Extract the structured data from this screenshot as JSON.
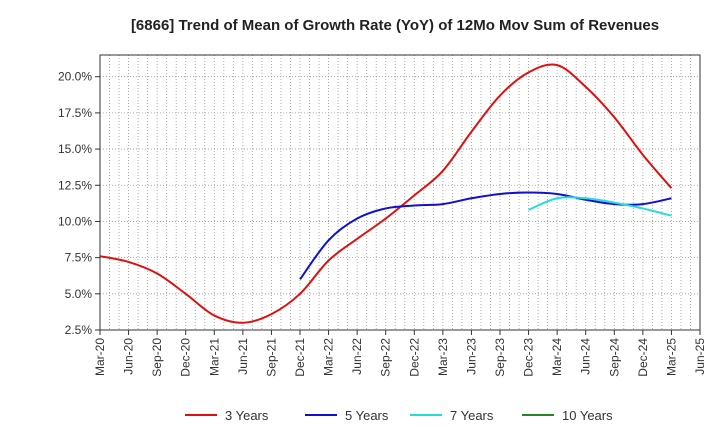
{
  "chart_data": {
    "type": "line",
    "title": "[6866]  Trend of Mean of Growth Rate (YoY) of 12Mo Mov Sum of Revenues",
    "xlabel": "",
    "ylabel": "",
    "ylim": [
      2.5,
      21.5
    ],
    "yticks": [
      2.5,
      5.0,
      7.5,
      10.0,
      12.5,
      15.0,
      17.5,
      20.0
    ],
    "ytick_labels": [
      "2.5%",
      "5.0%",
      "7.5%",
      "10.0%",
      "12.5%",
      "15.0%",
      "17.5%",
      "20.0%"
    ],
    "x_categories": [
      "Mar-20",
      "Jun-20",
      "Sep-20",
      "Dec-20",
      "Mar-21",
      "Jun-21",
      "Sep-21",
      "Dec-21",
      "Mar-22",
      "Jun-22",
      "Sep-22",
      "Dec-22",
      "Mar-23",
      "Jun-23",
      "Sep-23",
      "Dec-23",
      "Mar-24",
      "Jun-24",
      "Sep-24",
      "Dec-24",
      "Mar-25",
      "Jun-25"
    ],
    "grid": true,
    "legend_position": "bottom",
    "series": [
      {
        "name": "3 Years",
        "color": "#dd1111",
        "values": [
          7.6,
          7.2,
          6.4,
          5.0,
          3.5,
          3.0,
          3.6,
          5.0,
          7.3,
          8.8,
          10.2,
          11.8,
          13.5,
          16.2,
          18.7,
          20.3,
          20.8,
          19.3,
          17.2,
          14.6,
          12.3,
          null
        ]
      },
      {
        "name": "5 Years",
        "color": "#1111cc",
        "values": [
          null,
          null,
          null,
          null,
          null,
          null,
          null,
          6.0,
          8.7,
          10.2,
          10.9,
          11.1,
          11.2,
          11.6,
          11.9,
          12.0,
          11.9,
          11.5,
          11.2,
          11.2,
          11.6,
          null
        ]
      },
      {
        "name": "7 Years",
        "color": "#22dddd",
        "values": [
          null,
          null,
          null,
          null,
          null,
          null,
          null,
          null,
          null,
          null,
          null,
          null,
          null,
          null,
          null,
          10.8,
          11.6,
          11.6,
          11.3,
          10.9,
          10.4,
          null
        ]
      },
      {
        "name": "10 Years",
        "color": "#228822",
        "values": [
          null,
          null,
          null,
          null,
          null,
          null,
          null,
          null,
          null,
          null,
          null,
          null,
          null,
          null,
          null,
          null,
          null,
          null,
          null,
          null,
          null,
          null
        ]
      }
    ]
  }
}
